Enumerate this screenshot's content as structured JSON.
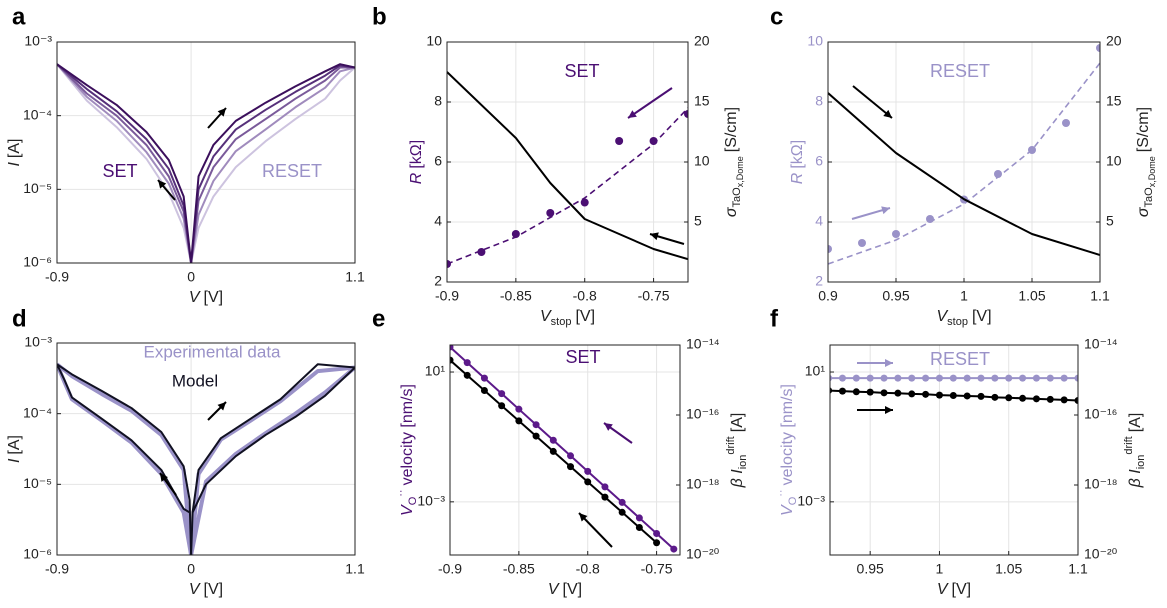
{
  "chart_data": [
    {
      "panel": "a",
      "type": "line",
      "ylog": true,
      "grid": true,
      "xlabel": [
        "V",
        "[V]"
      ],
      "ylabel": [
        "I",
        "[A]"
      ],
      "xlim": [
        -0.9,
        1.1
      ],
      "xticks": [
        -0.9,
        0,
        1.1
      ],
      "ylim": [
        1e-06,
        0.001
      ],
      "yticks": [
        {
          "value": 1e-06,
          "label": "10⁻⁶"
        },
        {
          "value": 1e-05,
          "label": "10⁻⁵"
        },
        {
          "value": 0.0001,
          "label": "10⁻⁴"
        },
        {
          "value": 0.001,
          "label": "10⁻³"
        }
      ],
      "annotations": [
        {
          "text": "SET",
          "color": "#4b0f73"
        },
        {
          "text": "RESET",
          "color": "#9a92c8"
        }
      ],
      "series": [
        {
          "color": "#cdc3df",
          "style": "line",
          "x": [
            -0.9,
            -0.7,
            -0.5,
            -0.3,
            -0.15,
            -0.05,
            0,
            0.05,
            0.15,
            0.3,
            0.5,
            0.7,
            0.9,
            1.0,
            1.1
          ],
          "values": [
            0.0005,
            0.00016,
            7e-05,
            2.6e-05,
            9e-06,
            3e-06,
            1e-06,
            3e-06,
            8e-06,
            2e-05,
            4.5e-05,
            9e-05,
            0.00017,
            0.0003,
            0.00045
          ]
        },
        {
          "color": "#a08bbd",
          "style": "line",
          "x": [
            -0.9,
            -0.7,
            -0.5,
            -0.3,
            -0.15,
            -0.05,
            0,
            0.05,
            0.15,
            0.3,
            0.5,
            0.7,
            0.9,
            1.0,
            1.1
          ],
          "values": [
            0.0005,
            0.00018,
            8.5e-05,
            3.2e-05,
            1.2e-05,
            4e-06,
            1e-06,
            4.5e-06,
            1.3e-05,
            3.3e-05,
            6.5e-05,
            0.00013,
            0.00024,
            0.0004,
            0.00045
          ]
        },
        {
          "color": "#7a5a9a",
          "style": "line",
          "x": [
            -0.9,
            -0.7,
            -0.5,
            -0.3,
            -0.15,
            -0.05,
            0,
            0.05,
            0.15,
            0.3,
            0.5,
            0.7,
            0.9,
            1.0,
            1.1
          ],
          "values": [
            0.0005,
            0.0002,
            0.0001,
            4e-05,
            1.5e-05,
            5e-06,
            1e-06,
            7e-06,
            2e-05,
            4.8e-05,
            9e-05,
            0.00017,
            0.0003,
            0.00045,
            0.00045
          ]
        },
        {
          "color": "#56307a",
          "style": "line",
          "x": [
            -0.9,
            -0.7,
            -0.5,
            -0.3,
            -0.15,
            -0.05,
            0,
            0.05,
            0.15,
            0.3,
            0.5,
            0.7,
            0.9,
            1.0,
            1.1
          ],
          "values": [
            0.0005,
            0.00023,
            0.000115,
            4.8e-05,
            1.9e-05,
            6e-06,
            1e-06,
            1e-05,
            2.8e-05,
            6.5e-05,
            0.00012,
            0.00021,
            0.00035,
            0.00048,
            0.00045
          ]
        },
        {
          "color": "#3b0f5c",
          "style": "line",
          "x": [
            -0.9,
            -0.7,
            -0.5,
            -0.3,
            -0.15,
            -0.05,
            0,
            0.05,
            0.15,
            0.3,
            0.5,
            0.7,
            0.9,
            1.0,
            1.1
          ],
          "values": [
            0.0005,
            0.00026,
            0.00014,
            6e-05,
            2.5e-05,
            8e-06,
            1e-06,
            1.5e-05,
            4e-05,
            8.5e-05,
            0.00015,
            0.00025,
            0.0004,
            0.0005,
            0.00045
          ]
        }
      ]
    },
    {
      "panel": "b",
      "type": "line",
      "grid": true,
      "xlabel": [
        "V",
        "stop",
        "[V]"
      ],
      "ylabel": [
        "R",
        "[kΩ]"
      ],
      "y2label": [
        "σ",
        "TaO",
        "x,Dome",
        "[S/cm]"
      ],
      "xlim": [
        -0.9,
        -0.725
      ],
      "xticks": [
        -0.9,
        -0.85,
        -0.8,
        -0.75
      ],
      "ylim": [
        2,
        10
      ],
      "yticks": [
        2,
        4,
        6,
        8,
        10
      ],
      "y2lim": [
        0,
        20
      ],
      "y2ticks": [
        5,
        10,
        15,
        20
      ],
      "annotations": [
        {
          "text": "SET",
          "color": "#4b0f73"
        }
      ],
      "series": [
        {
          "color": "#4b0f73",
          "style": "dashed",
          "x": [
            -0.9,
            -0.85,
            -0.8,
            -0.75,
            -0.725
          ],
          "values": [
            2.6,
            3.5,
            4.8,
            6.6,
            7.8
          ]
        },
        {
          "color": "#4b0f73",
          "style": "markers",
          "x": [
            -0.9,
            -0.875,
            -0.85,
            -0.825,
            -0.8,
            -0.775,
            -0.75,
            -0.725
          ],
          "values": [
            2.6,
            3.0,
            3.6,
            4.3,
            4.65,
            6.7,
            6.7,
            7.6
          ]
        },
        {
          "color": "#000000",
          "style": "line",
          "axis": "y2",
          "x": [
            -0.9,
            -0.85,
            -0.825,
            -0.8,
            -0.775,
            -0.75,
            -0.725
          ],
          "values": [
            17.5,
            12,
            8.25,
            5.25,
            4,
            2.75,
            1.9
          ]
        }
      ]
    },
    {
      "panel": "c",
      "type": "line",
      "grid": true,
      "xlabel": [
        "V",
        "stop",
        "[V]"
      ],
      "ylabel": [
        "R",
        "[kΩ]"
      ],
      "y2label": [
        "σ",
        "TaO",
        "x,Dome",
        "[S/cm]"
      ],
      "xlim": [
        0.9,
        1.1
      ],
      "xticks": [
        0.9,
        0.95,
        1,
        1.05,
        1.1
      ],
      "ylim": [
        2,
        10
      ],
      "yticks": [
        2,
        4,
        6,
        8,
        10
      ],
      "y2lim": [
        0,
        20
      ],
      "y2ticks": [
        5,
        10,
        15,
        20
      ],
      "annotations": [
        {
          "text": "RESET",
          "color": "#9a92c8"
        }
      ],
      "series": [
        {
          "color": "#9a92c8",
          "style": "dashed",
          "x": [
            0.9,
            0.95,
            1.0,
            1.05,
            1.1
          ],
          "values": [
            2.6,
            3.4,
            4.6,
            6.4,
            9.3
          ]
        },
        {
          "color": "#9a92c8",
          "style": "markers",
          "x": [
            0.9,
            0.925,
            0.95,
            0.975,
            1.0,
            1.025,
            1.05,
            1.075,
            1.1
          ],
          "values": [
            3.1,
            3.3,
            3.6,
            4.1,
            4.75,
            5.6,
            6.4,
            7.3,
            9.8
          ]
        },
        {
          "color": "#000000",
          "style": "line",
          "axis": "y2",
          "x": [
            0.9,
            0.95,
            1.0,
            1.05,
            1.1
          ],
          "values": [
            15.75,
            10.75,
            6.9,
            4,
            2.25
          ]
        }
      ]
    },
    {
      "panel": "d",
      "type": "line",
      "ylog": true,
      "grid": true,
      "xlabel": [
        "V",
        "[V]"
      ],
      "ylabel": [
        "I",
        "[A]"
      ],
      "xlim": [
        -0.9,
        1.1
      ],
      "xticks": [
        -0.9,
        0,
        1.1
      ],
      "ylim": [
        1e-06,
        0.001
      ],
      "yticks": [
        {
          "value": 1e-06,
          "label": "10⁻⁶"
        },
        {
          "value": 1e-05,
          "label": "10⁻⁵"
        },
        {
          "value": 0.0001,
          "label": "10⁻⁴"
        },
        {
          "value": 0.001,
          "label": "10⁻³"
        }
      ],
      "series": [
        {
          "name": "Experimental data",
          "color": "#9a92c8",
          "style": "thick",
          "x": [
            -0.9,
            -0.8,
            -0.6,
            -0.4,
            -0.2,
            -0.05,
            0,
            null,
            -0.9,
            -0.85,
            -0.8,
            -0.6,
            -0.4,
            -0.2,
            -0.05,
            0,
            null,
            0,
            0.05,
            0.2,
            0.4,
            0.6,
            0.85,
            1.1,
            null,
            0,
            0.1,
            0.3,
            0.5,
            0.7,
            0.9,
            1.1
          ],
          "values": [
            0.0005,
            0.00034,
            0.00019,
            0.00011,
            5e-05,
            1.6e-05,
            1e-06,
            null,
            0.0005,
            0.00028,
            0.00016,
            8e-05,
            3.9e-05,
            1.4e-05,
            4e-06,
            1e-06,
            null,
            1e-06,
            1.4e-05,
            4.3e-05,
            8e-05,
            0.00015,
            0.0004,
            0.00045,
            null,
            1e-06,
            1.1e-05,
            2.7e-05,
            5.3e-05,
            0.0001,
            0.0002,
            0.00045
          ]
        },
        {
          "name": "Model",
          "color": "#111122",
          "style": "line",
          "x": [
            -0.9,
            -0.8,
            -0.6,
            -0.4,
            -0.2,
            -0.05,
            -0.01,
            0,
            null,
            -0.9,
            -0.85,
            -0.8,
            -0.6,
            -0.4,
            -0.2,
            -0.05,
            -0.01,
            null,
            0.01,
            0.05,
            0.2,
            0.4,
            0.6,
            0.85,
            1.1,
            null,
            0,
            0.01,
            0.1,
            0.3,
            0.5,
            0.7,
            0.9,
            1.1
          ],
          "values": [
            0.0005,
            0.00036,
            0.00021,
            0.00012,
            5.5e-05,
            1.8e-05,
            6e-06,
            1e-06,
            null,
            0.0005,
            0.0003,
            0.00017,
            8.5e-05,
            4.2e-05,
            1.6e-05,
            4.5e-06,
            4e-06,
            null,
            4e-06,
            1.6e-05,
            4.5e-05,
            8.5e-05,
            0.00016,
            0.0005,
            0.00045,
            null,
            1e-06,
            4e-06,
            1e-05,
            2.5e-05,
            5e-05,
            9e-05,
            0.00018,
            0.00045
          ]
        }
      ]
    },
    {
      "panel": "e",
      "type": "line",
      "ylog": true,
      "y2log": true,
      "grid": true,
      "xlabel": [
        "V",
        "[V]"
      ],
      "ylabel": [
        "V",
        "O",
        "··",
        "velocity [nm/s]"
      ],
      "y2label": [
        "β I",
        "ion",
        "drift",
        "[A]"
      ],
      "xlim": [
        -0.9,
        -0.733
      ],
      "xticks": [
        -0.9,
        -0.85,
        -0.8,
        -0.75
      ],
      "ylim": [
        2.3e-05,
        68
      ],
      "yticks": [
        {
          "value": 0.001,
          "label": "10⁻³"
        },
        {
          "value": 10,
          "label": "10¹"
        }
      ],
      "y2lim": [
        1e-20,
        1e-14
      ],
      "y2ticks": [
        {
          "value": 1e-20,
          "label": "10⁻²⁰"
        },
        {
          "value": 1e-18,
          "label": "10⁻¹⁸"
        },
        {
          "value": 1e-16,
          "label": "10⁻¹⁶"
        },
        {
          "value": 1e-14,
          "label": "10⁻¹⁴"
        }
      ],
      "annotations": [
        {
          "text": "SET",
          "color": "#4b0f73"
        }
      ],
      "series": [
        {
          "color": "#5c1a8a",
          "style": "line+markers",
          "x": [
            -0.9,
            -0.8875,
            -0.875,
            -0.8625,
            -0.85,
            -0.8375,
            -0.825,
            -0.8125,
            -0.8,
            -0.7875,
            -0.775,
            -0.7625,
            -0.75,
            -0.7375
          ],
          "values": [
            58.9,
            19.5,
            6.5,
            2.16,
            0.716,
            0.238,
            0.0789,
            0.0262,
            0.0087,
            0.00289,
            0.00096,
            0.000319,
            0.000106,
            3.5e-05
          ]
        },
        {
          "color": "#000000",
          "style": "line+markers",
          "axis": "y2",
          "x": [
            -0.9,
            -0.8875,
            -0.875,
            -0.8625,
            -0.85,
            -0.8375,
            -0.825,
            -0.8125,
            -0.8,
            -0.7875,
            -0.775,
            -0.7625,
            -0.75
          ],
          "values": [
            3.7e-15,
            1.36e-15,
            5e-16,
            1.84e-16,
            6.8e-17,
            2.5e-17,
            9.1e-18,
            3.35e-18,
            1.23e-18,
            4.5e-19,
            1.66e-19,
            6.1e-20,
            2.24e-20
          ]
        }
      ]
    },
    {
      "panel": "f",
      "type": "line",
      "ylog": true,
      "y2log": true,
      "grid": true,
      "xlabel": [
        "V",
        "[V]"
      ],
      "ylabel": [
        "V",
        "O",
        "··",
        "velocity [nm/s]"
      ],
      "y2label": [
        "β I",
        "ion",
        "drift",
        "[A]"
      ],
      "xlim": [
        0.921,
        1.1
      ],
      "xticks": [
        0.95,
        1,
        1.05,
        1.1
      ],
      "ylim": [
        2.3e-05,
        68
      ],
      "yticks": [
        {
          "value": 0.001,
          "label": "10⁻³"
        },
        {
          "value": 10,
          "label": "10¹"
        }
      ],
      "y2lim": [
        1e-20,
        1e-14
      ],
      "y2ticks": [
        {
          "value": 1e-20,
          "label": "10⁻²⁰"
        },
        {
          "value": 1e-18,
          "label": "10⁻¹⁸"
        },
        {
          "value": 1e-16,
          "label": "10⁻¹⁶"
        },
        {
          "value": 1e-14,
          "label": "10⁻¹⁴"
        }
      ],
      "annotations": [
        {
          "text": "RESET",
          "color": "#9a92c8"
        }
      ],
      "series": [
        {
          "color": "#9a92c8",
          "style": "line+markers",
          "x": [
            0.92,
            0.93,
            0.94,
            0.95,
            0.96,
            0.97,
            0.98,
            0.99,
            1.0,
            1.01,
            1.02,
            1.03,
            1.04,
            1.05,
            1.06,
            1.07,
            1.08,
            1.09,
            1.1
          ],
          "values": [
            6.5,
            6.5,
            6.5,
            6.5,
            6.5,
            6.5,
            6.5,
            6.5,
            6.5,
            6.5,
            6.5,
            6.5,
            6.5,
            6.5,
            6.5,
            6.5,
            6.5,
            6.5,
            6.5
          ]
        },
        {
          "color": "#000000",
          "style": "line+markers",
          "axis": "y2",
          "x": [
            0.92,
            0.93,
            0.94,
            0.95,
            0.96,
            0.97,
            0.98,
            0.99,
            1.0,
            1.01,
            1.02,
            1.03,
            1.04,
            1.05,
            1.06,
            1.07,
            1.08,
            1.09,
            1.1
          ],
          "values": [
            5e-16,
            4.8e-16,
            4.6e-16,
            4.5e-16,
            4.3e-16,
            4.2e-16,
            4e-16,
            3.9e-16,
            3.7e-16,
            3.6e-16,
            3.5e-16,
            3.4e-16,
            3.2e-16,
            3.1e-16,
            3e-16,
            2.9e-16,
            2.8e-16,
            2.7e-16,
            2.6e-16
          ]
        }
      ]
    }
  ]
}
